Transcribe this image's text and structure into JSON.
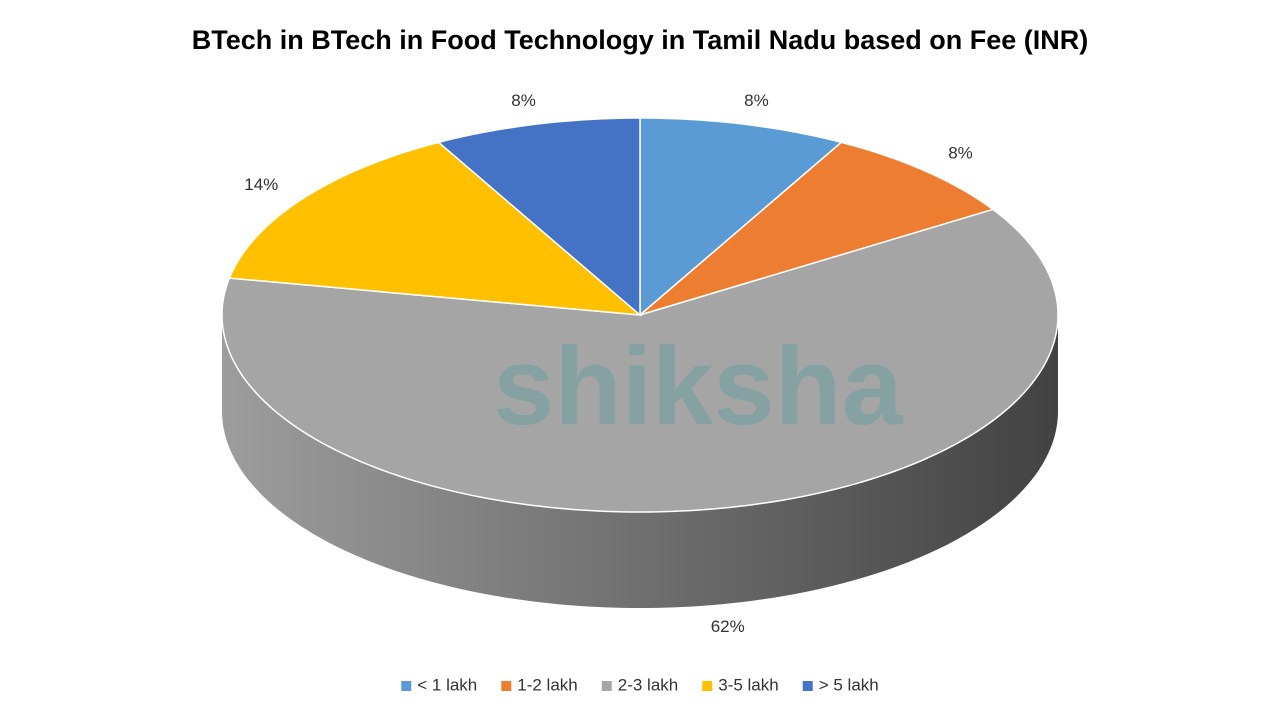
{
  "chart_data": {
    "type": "pie",
    "title": "BTech in BTech in Food Technology in Tamil Nadu based on Fee (INR)",
    "watermark": "shiksha",
    "categories": [
      "< 1 lakh",
      "1-2 lakh",
      "2-3 lakh",
      "3-5 lakh",
      "> 5 lakh"
    ],
    "values": [
      8,
      8,
      62,
      14,
      8
    ],
    "value_labels": [
      "8%",
      "8%",
      "62%",
      "14%",
      "8%"
    ],
    "colors": [
      "#5b9bd5",
      "#ed7d31",
      "#a5a5a5",
      "#ffc000",
      "#4472c4"
    ],
    "legend": "bottom"
  }
}
